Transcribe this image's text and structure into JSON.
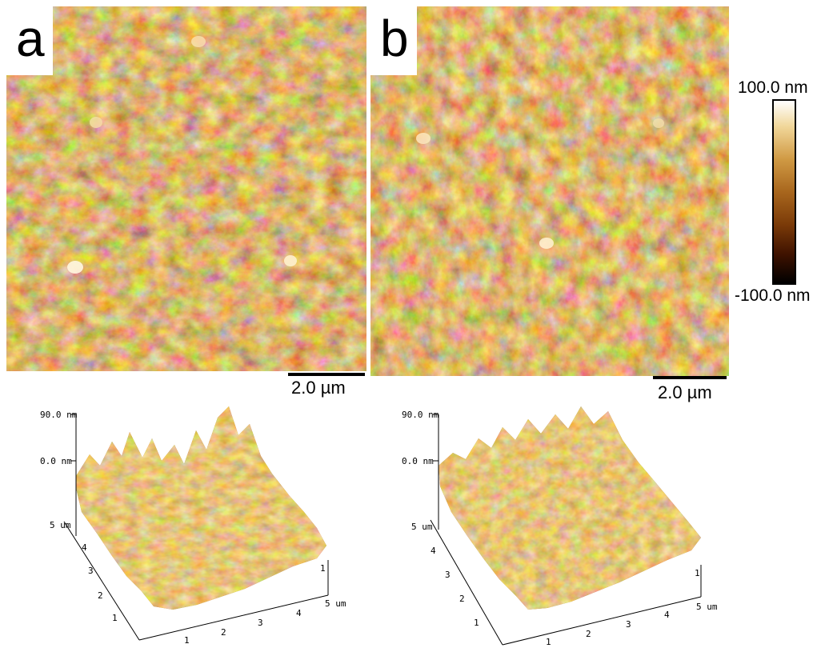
{
  "panels": [
    {
      "letter": "a",
      "scale_bar_label": "2.0 µm"
    },
    {
      "letter": "b",
      "scale_bar_label": "2.0 µm"
    }
  ],
  "color_scale": {
    "max_label": "100.0 nm",
    "min_label": "-100.0 nm"
  },
  "surface_plots": [
    {
      "z_labels": [
        "90.0 nm",
        "0.0 nm"
      ],
      "y_ticks": [
        "5 um",
        "4",
        "3",
        "2",
        "1"
      ],
      "x_ticks": [
        "1",
        "2",
        "3",
        "4",
        "5 um"
      ],
      "side_tick": "1"
    },
    {
      "z_labels": [
        "90.0 nm",
        "0.0 nm"
      ],
      "y_ticks": [
        "5 um",
        "4",
        "3",
        "2",
        "1"
      ],
      "x_ticks": [
        "1",
        "2",
        "3",
        "4",
        "5 um"
      ],
      "side_tick": "1"
    }
  ],
  "colors": {
    "afm_dark": "#3f1a00",
    "afm_mid": "#a8661d",
    "afm_light": "#ffffff"
  }
}
